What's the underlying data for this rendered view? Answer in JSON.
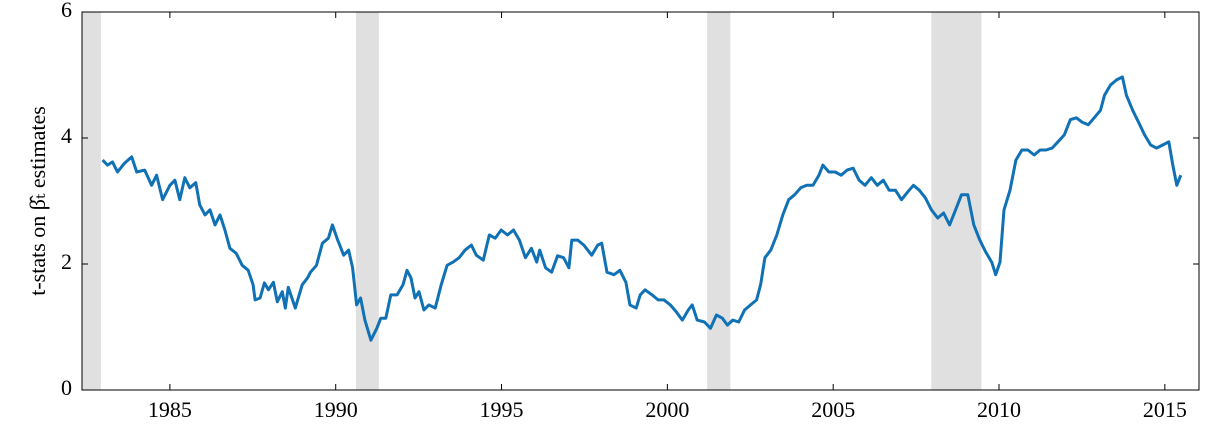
{
  "chart_data": {
    "type": "line",
    "ylabel": "t-stats on β̂ₜ estimates",
    "color": "#1071b5",
    "band_color": "#e0e0e0",
    "xlim": [
      1982.35,
      2016.03
    ],
    "ylim": [
      0,
      6
    ],
    "xticks": [
      1985,
      1990,
      1995,
      2000,
      2005,
      2010,
      2015
    ],
    "yticks": [
      0,
      2,
      4,
      6
    ],
    "grid": false,
    "shaded_regions": [
      [
        1982.35,
        1982.92
      ],
      [
        1990.61,
        1991.3
      ],
      [
        2001.2,
        2001.9
      ],
      [
        2007.96,
        2009.47
      ]
    ],
    "x": [
      1982.97,
      1983.12,
      1983.27,
      1983.42,
      1983.63,
      1983.85,
      1984.0,
      1984.24,
      1984.45,
      1984.6,
      1984.78,
      1985.0,
      1985.15,
      1985.3,
      1985.45,
      1985.6,
      1985.78,
      1985.9,
      1986.06,
      1986.21,
      1986.36,
      1986.51,
      1986.66,
      1986.81,
      1987.0,
      1987.18,
      1987.36,
      1987.51,
      1987.57,
      1987.72,
      1987.85,
      1987.97,
      1988.12,
      1988.24,
      1988.39,
      1988.48,
      1988.57,
      1988.78,
      1988.99,
      1989.15,
      1989.24,
      1989.42,
      1989.6,
      1989.78,
      1989.9,
      1990.06,
      1990.24,
      1990.39,
      1990.51,
      1990.63,
      1990.75,
      1990.88,
      1991.06,
      1991.24,
      1991.36,
      1991.51,
      1991.66,
      1991.85,
      1992.03,
      1992.15,
      1992.27,
      1992.39,
      1992.51,
      1992.66,
      1992.81,
      1993.0,
      1993.18,
      1993.36,
      1993.54,
      1993.72,
      1993.9,
      1994.09,
      1994.24,
      1994.45,
      1994.63,
      1994.81,
      1994.99,
      1995.18,
      1995.36,
      1995.54,
      1995.72,
      1995.9,
      1996.06,
      1996.15,
      1996.33,
      1996.51,
      1996.69,
      1996.87,
      1997.03,
      1997.12,
      1997.3,
      1997.48,
      1997.72,
      1997.9,
      1998.02,
      1998.18,
      1998.39,
      1998.57,
      1998.75,
      1998.87,
      1999.06,
      1999.18,
      1999.33,
      1999.54,
      1999.72,
      1999.9,
      2000.09,
      2000.27,
      2000.45,
      2000.63,
      2000.75,
      2000.9,
      2001.12,
      2001.3,
      2001.48,
      2001.66,
      2001.81,
      2001.97,
      2002.15,
      2002.33,
      2002.51,
      2002.69,
      2002.81,
      2002.94,
      2003.12,
      2003.3,
      2003.48,
      2003.66,
      2003.84,
      2004.02,
      2004.2,
      2004.39,
      2004.57,
      2004.69,
      2004.87,
      2005.06,
      2005.24,
      2005.42,
      2005.6,
      2005.78,
      2005.96,
      2006.15,
      2006.33,
      2006.51,
      2006.69,
      2006.88,
      2007.06,
      2007.24,
      2007.42,
      2007.6,
      2007.78,
      2007.96,
      2008.15,
      2008.33,
      2008.51,
      2008.69,
      2008.87,
      2009.06,
      2009.24,
      2009.42,
      2009.6,
      2009.78,
      2009.9,
      2010.03,
      2010.15,
      2010.33,
      2010.51,
      2010.69,
      2010.87,
      2011.06,
      2011.24,
      2011.42,
      2011.6,
      2011.78,
      2011.97,
      2012.15,
      2012.33,
      2012.51,
      2012.69,
      2012.87,
      2013.06,
      2013.18,
      2013.36,
      2013.54,
      2013.72,
      2013.84,
      2014.03,
      2014.21,
      2014.39,
      2014.57,
      2014.75,
      2014.94,
      2015.12,
      2015.24,
      2015.36,
      2015.48
    ],
    "values": [
      3.65,
      3.57,
      3.62,
      3.46,
      3.6,
      3.7,
      3.46,
      3.49,
      3.25,
      3.41,
      3.02,
      3.25,
      3.33,
      3.02,
      3.37,
      3.21,
      3.29,
      2.94,
      2.78,
      2.86,
      2.62,
      2.78,
      2.54,
      2.25,
      2.17,
      1.98,
      1.9,
      1.67,
      1.43,
      1.46,
      1.7,
      1.59,
      1.71,
      1.4,
      1.56,
      1.3,
      1.63,
      1.3,
      1.67,
      1.78,
      1.87,
      1.98,
      2.33,
      2.41,
      2.62,
      2.38,
      2.14,
      2.22,
      1.94,
      1.35,
      1.46,
      1.11,
      0.79,
      0.98,
      1.14,
      1.14,
      1.51,
      1.51,
      1.67,
      1.9,
      1.78,
      1.46,
      1.56,
      1.27,
      1.35,
      1.3,
      1.67,
      1.98,
      2.03,
      2.1,
      2.22,
      2.3,
      2.14,
      2.06,
      2.46,
      2.41,
      2.54,
      2.46,
      2.54,
      2.38,
      2.1,
      2.25,
      2.03,
      2.22,
      1.94,
      1.87,
      2.13,
      2.1,
      1.94,
      2.38,
      2.38,
      2.3,
      2.14,
      2.3,
      2.33,
      1.87,
      1.83,
      1.9,
      1.71,
      1.35,
      1.3,
      1.51,
      1.59,
      1.51,
      1.43,
      1.43,
      1.35,
      1.24,
      1.11,
      1.27,
      1.35,
      1.11,
      1.08,
      0.98,
      1.19,
      1.14,
      1.03,
      1.11,
      1.08,
      1.27,
      1.35,
      1.43,
      1.67,
      2.1,
      2.22,
      2.46,
      2.78,
      3.02,
      3.1,
      3.21,
      3.25,
      3.25,
      3.41,
      3.57,
      3.46,
      3.46,
      3.41,
      3.49,
      3.52,
      3.33,
      3.25,
      3.37,
      3.25,
      3.33,
      3.17,
      3.17,
      3.02,
      3.14,
      3.25,
      3.17,
      3.05,
      2.86,
      2.73,
      2.81,
      2.62,
      2.86,
      3.1,
      3.1,
      2.62,
      2.38,
      2.19,
      2.03,
      1.83,
      2.03,
      2.86,
      3.17,
      3.65,
      3.81,
      3.81,
      3.73,
      3.81,
      3.81,
      3.84,
      3.94,
      4.05,
      4.29,
      4.32,
      4.25,
      4.21,
      4.32,
      4.44,
      4.68,
      4.84,
      4.92,
      4.97,
      4.68,
      4.44,
      4.25,
      4.05,
      3.89,
      3.84,
      3.89,
      3.94,
      3.57,
      3.25,
      3.41
    ]
  }
}
